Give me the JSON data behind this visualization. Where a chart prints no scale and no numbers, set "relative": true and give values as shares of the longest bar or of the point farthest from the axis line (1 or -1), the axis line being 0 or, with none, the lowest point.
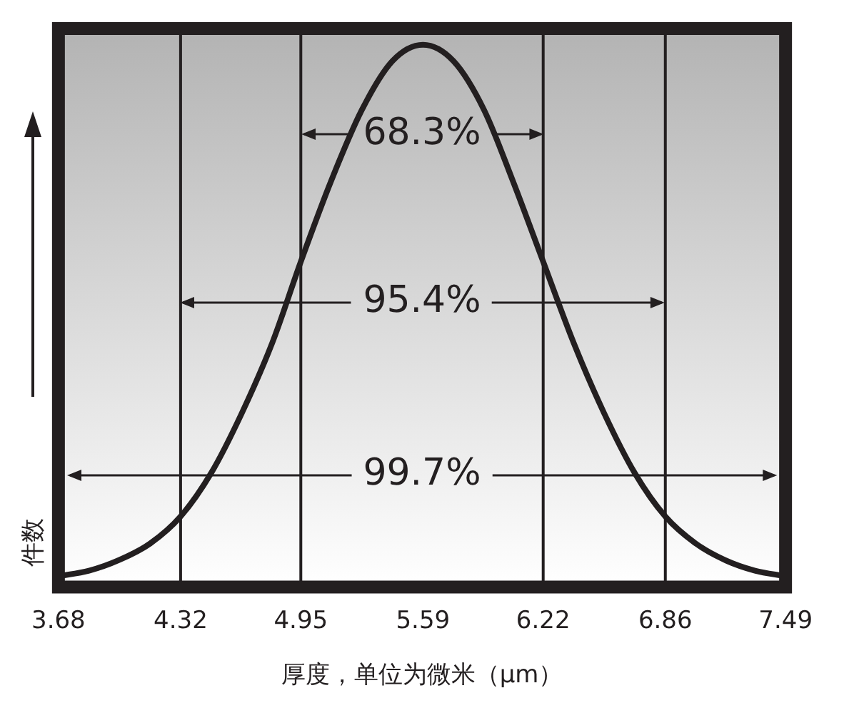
{
  "chart_data": {
    "type": "line",
    "relative": true,
    "xlabel": "厚度，单位为微米（μm）",
    "ylabel": "件数",
    "x": [
      3.68,
      3.84,
      4.0,
      4.16,
      4.32,
      4.48,
      4.64,
      4.8,
      4.95,
      5.11,
      5.27,
      5.43,
      5.59,
      5.75,
      5.91,
      6.06,
      6.22,
      6.38,
      6.54,
      6.7,
      6.86,
      7.02,
      7.17,
      7.33,
      7.49
    ],
    "series": [
      {
        "color": "#231f20",
        "values": [
          0.02,
          0.03,
          0.05,
          0.08,
          0.13,
          0.21,
          0.32,
          0.45,
          0.6,
          0.75,
          0.88,
          0.97,
          1,
          0.97,
          0.88,
          0.75,
          0.6,
          0.45,
          0.32,
          0.21,
          0.13,
          0.08,
          0.05,
          0.03,
          0.02
        ]
      }
    ],
    "xlim": [
      3.68,
      7.49
    ],
    "xticks": [
      3.68,
      4.32,
      4.95,
      5.59,
      6.22,
      6.86,
      7.49
    ],
    "ref_lines": [
      {
        "axis": "x",
        "value": 4.32
      },
      {
        "axis": "x",
        "value": 4.95
      },
      {
        "axis": "x",
        "value": 6.22
      },
      {
        "axis": "x",
        "value": 6.86
      }
    ],
    "annotations": [
      "68.3%",
      "95.4%",
      "99.7%"
    ],
    "grid": false,
    "legend": false,
    "marker": "none",
    "line_style": "solid"
  }
}
